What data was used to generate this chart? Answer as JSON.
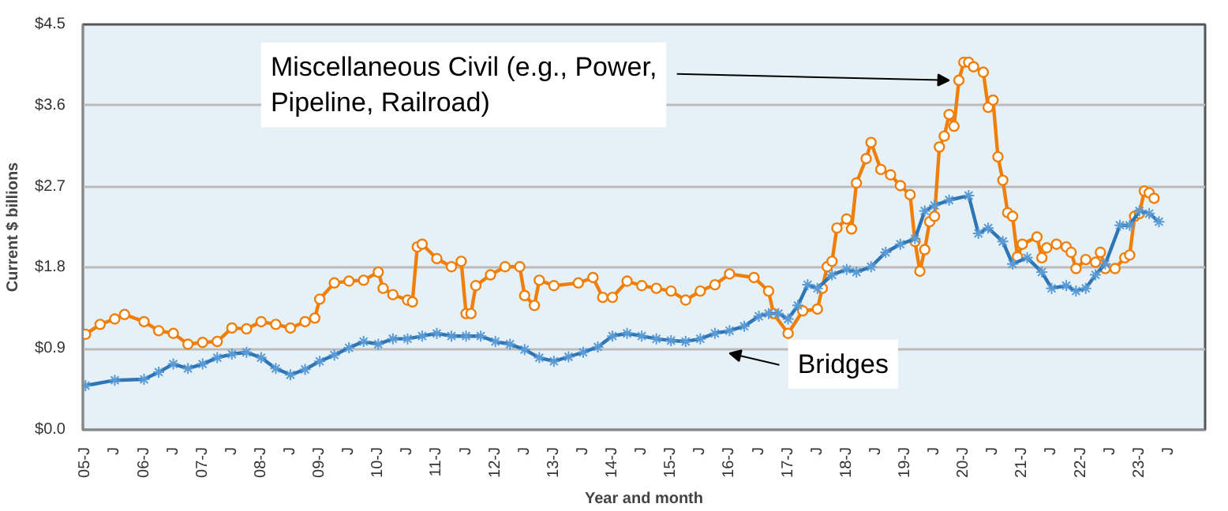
{
  "chart_data": {
    "type": "line",
    "xlabel": "Year and month",
    "ylabel": "Current $ billions",
    "xlim": [
      "2004-12-15",
      "2024-02-15"
    ],
    "xticks": [
      {
        "value": "2005-01",
        "label": "05-J"
      },
      {
        "value": "2005-07",
        "label": "J"
      },
      {
        "value": "2006-01",
        "label": "06-J"
      },
      {
        "value": "2006-07",
        "label": "J"
      },
      {
        "value": "2007-01",
        "label": "07-J"
      },
      {
        "value": "2007-07",
        "label": "J"
      },
      {
        "value": "2008-01",
        "label": "08-J"
      },
      {
        "value": "2008-07",
        "label": "J"
      },
      {
        "value": "2009-01",
        "label": "09-J"
      },
      {
        "value": "2009-07",
        "label": "J"
      },
      {
        "value": "2010-01",
        "label": "10-J"
      },
      {
        "value": "2010-07",
        "label": "J"
      },
      {
        "value": "2011-01",
        "label": "11-J"
      },
      {
        "value": "2011-07",
        "label": "J"
      },
      {
        "value": "2012-01",
        "label": "12-J"
      },
      {
        "value": "2012-07",
        "label": "J"
      },
      {
        "value": "2013-01",
        "label": "13-J"
      },
      {
        "value": "2013-07",
        "label": "J"
      },
      {
        "value": "2014-01",
        "label": "14-J"
      },
      {
        "value": "2014-07",
        "label": "J"
      },
      {
        "value": "2015-01",
        "label": "15-J"
      },
      {
        "value": "2015-07",
        "label": "J"
      },
      {
        "value": "2016-01",
        "label": "16-J"
      },
      {
        "value": "2016-07",
        "label": "J"
      },
      {
        "value": "2017-01",
        "label": "17-J"
      },
      {
        "value": "2017-07",
        "label": "J"
      },
      {
        "value": "2018-01",
        "label": "18-J"
      },
      {
        "value": "2018-07",
        "label": "J"
      },
      {
        "value": "2019-01",
        "label": "19-J"
      },
      {
        "value": "2019-07",
        "label": "J"
      },
      {
        "value": "2020-01",
        "label": "20-J"
      },
      {
        "value": "2020-07",
        "label": "J"
      },
      {
        "value": "2021-01",
        "label": "21-J"
      },
      {
        "value": "2021-07",
        "label": "J"
      },
      {
        "value": "2022-01",
        "label": "22-J"
      },
      {
        "value": "2022-07",
        "label": "J"
      },
      {
        "value": "2023-01",
        "label": "23-J"
      },
      {
        "value": "2023-07",
        "label": "J"
      }
    ],
    "ylim": [
      0,
      4.5
    ],
    "yticks": [
      {
        "value": 0,
        "label": "$0.0"
      },
      {
        "value": 0.9,
        "label": "$0.9"
      },
      {
        "value": 1.8,
        "label": "$1.8"
      },
      {
        "value": 2.7,
        "label": "$2.7"
      },
      {
        "value": 3.6,
        "label": "$3.6"
      },
      {
        "value": 4.5,
        "label": "$4.5"
      }
    ],
    "grid": "y",
    "legend": false,
    "series": [
      {
        "name": "Miscellaneous Civil (e.g., Power,\nPipeline, Railroad)",
        "color": "#f07f09",
        "marker": "circle",
        "x": [
          "2005-01",
          "2005-04",
          "2005-07",
          "2005-09",
          "2006-01",
          "2006-04",
          "2006-07",
          "2006-10",
          "2007-01",
          "2007-04",
          "2007-07",
          "2007-10",
          "2008-01",
          "2008-04",
          "2008-07",
          "2008-10",
          "2008-12",
          "2009-01",
          "2009-04",
          "2009-07",
          "2009-10",
          "2010-01",
          "2010-02",
          "2010-04",
          "2010-07",
          "2010-08",
          "2010-09",
          "2010-10",
          "2011-01",
          "2011-04",
          "2011-06",
          "2011-07",
          "2011-08",
          "2011-09",
          "2011-12",
          "2012-03",
          "2012-06",
          "2012-07",
          "2012-09",
          "2012-10",
          "2013-01",
          "2013-06",
          "2013-09",
          "2013-11",
          "2014-01",
          "2014-04",
          "2014-07",
          "2014-10",
          "2015-01",
          "2015-04",
          "2015-07",
          "2015-10",
          "2016-01",
          "2016-06",
          "2016-09",
          "2016-10",
          "2017-01",
          "2017-04",
          "2017-07",
          "2017-08",
          "2017-09",
          "2017-10",
          "2017-11",
          "2018-01",
          "2018-02",
          "2018-03",
          "2018-05",
          "2018-06",
          "2018-08",
          "2018-10",
          "2018-12",
          "2019-02",
          "2019-03",
          "2019-04",
          "2019-05",
          "2019-06",
          "2019-07",
          "2019-08",
          "2019-09",
          "2019-10",
          "2019-11",
          "2019-12",
          "2020-01",
          "2020-02",
          "2020-03",
          "2020-05",
          "2020-06",
          "2020-07",
          "2020-08",
          "2020-09",
          "2020-10",
          "2020-11",
          "2020-12",
          "2021-01",
          "2021-04",
          "2021-05",
          "2021-06",
          "2021-08",
          "2021-10",
          "2021-11",
          "2021-12",
          "2022-02",
          "2022-04",
          "2022-05",
          "2022-06",
          "2022-08",
          "2022-10",
          "2022-11",
          "2022-12",
          "2023-01",
          "2023-02",
          "2023-03",
          "2023-04"
        ],
        "values": [
          1.06,
          1.17,
          1.23,
          1.28,
          1.2,
          1.1,
          1.07,
          0.95,
          0.97,
          0.98,
          1.13,
          1.12,
          1.2,
          1.17,
          1.13,
          1.2,
          1.24,
          1.45,
          1.63,
          1.65,
          1.66,
          1.75,
          1.57,
          1.5,
          1.44,
          1.42,
          2.03,
          2.06,
          1.9,
          1.81,
          1.87,
          1.29,
          1.29,
          1.6,
          1.72,
          1.81,
          1.81,
          1.49,
          1.38,
          1.66,
          1.6,
          1.63,
          1.69,
          1.47,
          1.47,
          1.65,
          1.6,
          1.57,
          1.54,
          1.44,
          1.54,
          1.61,
          1.73,
          1.69,
          1.54,
          1.29,
          1.07,
          1.32,
          1.34,
          1.57,
          1.81,
          1.87,
          2.24,
          2.34,
          2.23,
          2.74,
          3.01,
          3.19,
          2.89,
          2.83,
          2.71,
          2.61,
          2.09,
          1.76,
          2.0,
          2.31,
          2.37,
          3.14,
          3.26,
          3.5,
          3.37,
          3.88,
          4.08,
          4.08,
          4.03,
          3.97,
          3.58,
          3.66,
          3.03,
          2.77,
          2.41,
          2.37,
          1.92,
          2.06,
          2.14,
          1.91,
          2.02,
          2.06,
          2.03,
          1.97,
          1.79,
          1.89,
          1.86,
          1.97,
          1.79,
          1.79,
          1.91,
          1.94,
          2.37,
          2.4,
          2.65,
          2.63,
          2.57
        ]
      },
      {
        "name": "Bridges",
        "color": "#2e75b6",
        "marker": "cross",
        "x": [
          "2005-01",
          "2005-07",
          "2006-01",
          "2006-04",
          "2006-07",
          "2006-10",
          "2007-01",
          "2007-04",
          "2007-07",
          "2007-10",
          "2008-01",
          "2008-04",
          "2008-07",
          "2008-10",
          "2009-01",
          "2009-04",
          "2009-07",
          "2009-10",
          "2010-01",
          "2010-04",
          "2010-07",
          "2010-10",
          "2011-01",
          "2011-04",
          "2011-07",
          "2011-10",
          "2012-01",
          "2012-04",
          "2012-07",
          "2012-10",
          "2013-01",
          "2013-04",
          "2013-07",
          "2013-10",
          "2014-01",
          "2014-04",
          "2014-07",
          "2014-10",
          "2015-01",
          "2015-04",
          "2015-07",
          "2015-10",
          "2016-01",
          "2016-04",
          "2016-07",
          "2016-09",
          "2016-11",
          "2017-01",
          "2017-03",
          "2017-05",
          "2017-07",
          "2017-10",
          "2018-01",
          "2018-03",
          "2018-06",
          "2018-09",
          "2018-12",
          "2019-03",
          "2019-05",
          "2019-07",
          "2019-10",
          "2020-02",
          "2020-04",
          "2020-06",
          "2020-09",
          "2020-11",
          "2021-02",
          "2021-05",
          "2021-07",
          "2021-10",
          "2021-12",
          "2022-02",
          "2022-04",
          "2022-06",
          "2022-09",
          "2022-11",
          "2023-01",
          "2023-03",
          "2023-05"
        ],
        "values": [
          0.49,
          0.55,
          0.56,
          0.64,
          0.73,
          0.68,
          0.73,
          0.8,
          0.84,
          0.86,
          0.8,
          0.68,
          0.61,
          0.67,
          0.76,
          0.83,
          0.91,
          0.98,
          0.95,
          1.01,
          1.01,
          1.04,
          1.07,
          1.04,
          1.04,
          1.04,
          0.98,
          0.95,
          0.89,
          0.8,
          0.76,
          0.81,
          0.86,
          0.92,
          1.04,
          1.07,
          1.04,
          1.01,
          0.99,
          0.98,
          1.01,
          1.07,
          1.1,
          1.15,
          1.26,
          1.29,
          1.29,
          1.23,
          1.38,
          1.61,
          1.57,
          1.72,
          1.78,
          1.75,
          1.81,
          1.97,
          2.06,
          2.12,
          2.43,
          2.49,
          2.55,
          2.6,
          2.18,
          2.24,
          2.09,
          1.84,
          1.91,
          1.75,
          1.57,
          1.6,
          1.54,
          1.57,
          1.72,
          1.84,
          2.27,
          2.27,
          2.43,
          2.4,
          2.31
        ]
      }
    ]
  }
}
